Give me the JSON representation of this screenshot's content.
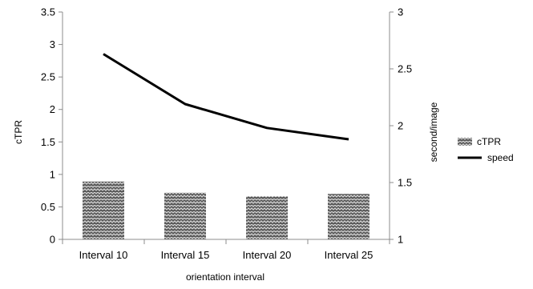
{
  "chart_data": {
    "type": "bar",
    "categories": [
      "Interval 10",
      "Interval 15",
      "Interval 20",
      "Interval 25"
    ],
    "series": [
      {
        "name": "cTPR",
        "chart_type": "bar",
        "axis": "left",
        "values": [
          0.89,
          0.72,
          0.66,
          0.7
        ],
        "color": "#595959",
        "pattern": "wave-hatch"
      },
      {
        "name": "speed",
        "chart_type": "line",
        "axis": "right",
        "values": [
          2.63,
          2.19,
          1.98,
          1.88
        ],
        "color": "#000000"
      }
    ],
    "xlabel": "orientation interval",
    "ylabel": "cTPR",
    "y2label": "second/image",
    "ylim": [
      0,
      3.5
    ],
    "y2lim": [
      1,
      3
    ],
    "yticks": [
      "0",
      "0.5",
      "1",
      "1.5",
      "2",
      "2.5",
      "3",
      "3.5"
    ],
    "y2ticks": [
      "1",
      "1.5",
      "2",
      "2.5",
      "3"
    ],
    "grid": false,
    "legend": "right"
  }
}
